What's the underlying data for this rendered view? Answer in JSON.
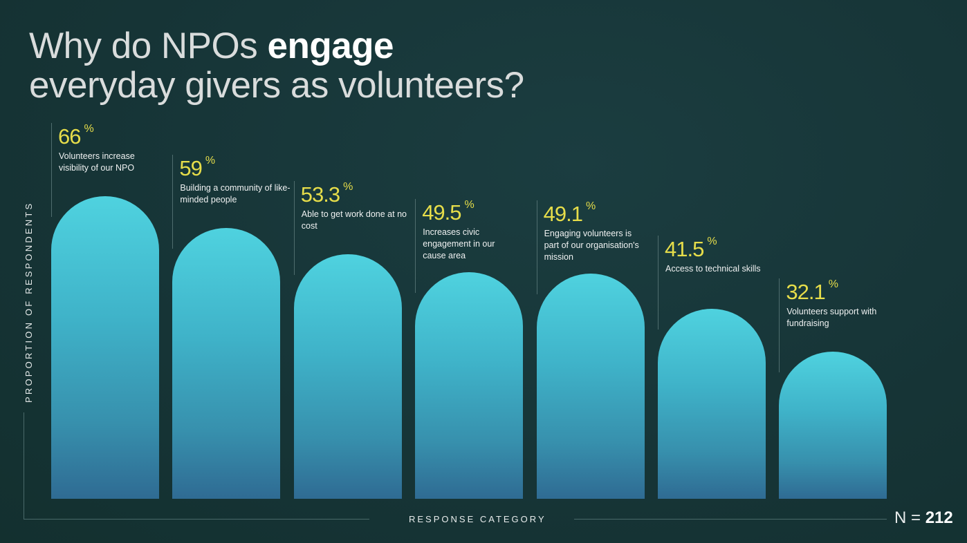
{
  "title": {
    "pre": "Why do NPOs ",
    "bold": "engage",
    "line2": "everyday givers as volunteers?"
  },
  "chart_data": {
    "type": "bar",
    "title": "Why do NPOs engage everyday givers as volunteers?",
    "xlabel": "RESPONSE CATEGORY",
    "ylabel": "PROPORTION OF RESPONDENTS",
    "unit": "%",
    "categories": [
      "Volunteers increase visibility of our NPO",
      "Building a community of like-minded people",
      "Able to get work done at no cost",
      "Increases civic engagement in our cause area",
      "Engaging volunteers is part of our organisation's mission",
      "Access to technical skills",
      "Volunteers support with fundraising"
    ],
    "values": [
      66,
      59,
      53.3,
      49.5,
      49.1,
      41.5,
      32.1
    ],
    "value_labels": [
      "66",
      "59",
      "53.3",
      "49.5",
      "49.1",
      "41.5",
      "32.1"
    ],
    "ylim": [
      0,
      66
    ],
    "grid": false,
    "colors": {
      "bar_top": "#4fd2df",
      "bar_bottom": "#2f6b93",
      "value": "#e6dd4a",
      "background": "#163436"
    }
  },
  "sample": {
    "label": "N",
    "eq": "=",
    "value": "212"
  }
}
